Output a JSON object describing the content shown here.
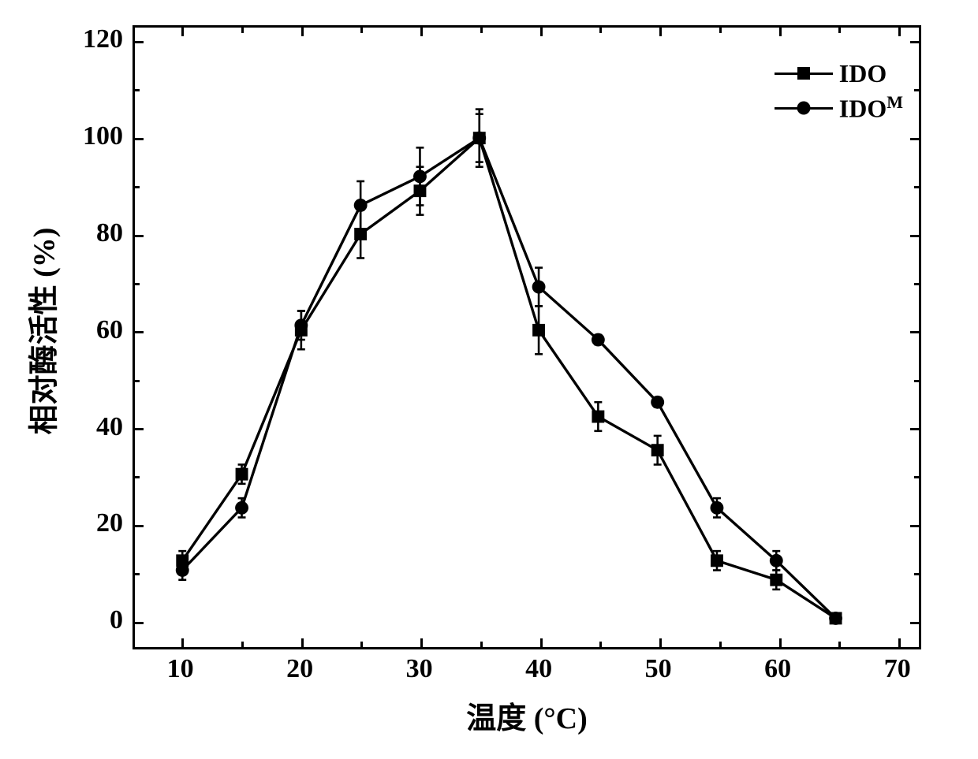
{
  "chart": {
    "type": "line",
    "background_color": "#ffffff",
    "axis_color": "#000000",
    "axis_width": 3,
    "font": {
      "family": "SimSun / Times New Roman",
      "tick_size": 34,
      "label_size": 38,
      "legend_size": 32,
      "weight": "bold",
      "color": "#000000"
    },
    "x": {
      "label": "温度 (°C)",
      "lim": [
        6,
        72
      ],
      "ticks": [
        10,
        20,
        30,
        40,
        50,
        60,
        70
      ],
      "minor_ticks": [
        15,
        25,
        35,
        45,
        55,
        65
      ]
    },
    "y": {
      "label": "相对酶活性 (%)",
      "lim": [
        -6,
        123
      ],
      "ticks": [
        0,
        20,
        40,
        60,
        80,
        100,
        120
      ],
      "minor_ticks": [
        10,
        30,
        50,
        70,
        90,
        110
      ]
    },
    "grid": false,
    "legend": {
      "position": "top-right",
      "items": [
        {
          "key": "IDO",
          "label": "IDO",
          "marker": "square"
        },
        {
          "key": "IDO_M",
          "label": "IDO",
          "label_sup": "M",
          "marker": "circle"
        }
      ]
    },
    "series": [
      {
        "key": "IDO",
        "label": "IDO",
        "marker": "square",
        "marker_size": 16,
        "line_width": 3.4,
        "color": "#000000",
        "x": [
          10,
          15,
          20,
          25,
          30,
          35,
          40,
          45,
          50,
          55,
          60,
          65
        ],
        "y": [
          12,
          30,
          60,
          80,
          89,
          100,
          60,
          42,
          35,
          12,
          8,
          0
        ],
        "err": [
          2,
          2,
          4,
          5,
          5,
          6,
          5,
          3,
          3,
          2,
          2,
          0
        ]
      },
      {
        "key": "IDO_M",
        "label": "IDO^M",
        "marker": "circle",
        "marker_size": 17,
        "line_width": 3.4,
        "color": "#000000",
        "x": [
          10,
          15,
          20,
          25,
          30,
          35,
          40,
          45,
          50,
          55,
          60,
          65
        ],
        "y": [
          10,
          23,
          61,
          86,
          92,
          100,
          69,
          58,
          45,
          23,
          12,
          0
        ],
        "err": [
          2,
          2,
          3,
          5,
          6,
          5,
          4,
          1,
          1,
          2,
          2,
          0
        ]
      }
    ]
  }
}
